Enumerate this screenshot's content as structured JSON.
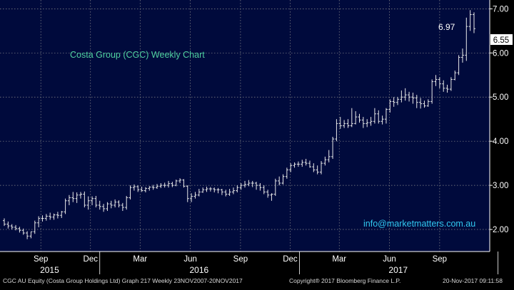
{
  "chart_data": {
    "type": "ohlc",
    "title": "Costa Group (CGC) Weekly Chart",
    "watermark": "info@marketmatters.com.au",
    "colors": {
      "background": "#000000",
      "plot_background": "#000a3c",
      "bars": "#e8e8e8",
      "title_text": "#4fd0a0",
      "watermark_text": "#31c8f0",
      "grid": "#8a8a8a",
      "axis_text": "#ffffff"
    },
    "y_axis": {
      "side": "right",
      "ylim": [
        1.5,
        7.2
      ],
      "ticks": [
        "2.00",
        "3.00",
        "4.00",
        "5.00",
        "6.00",
        "7.00"
      ]
    },
    "x_axis": {
      "month_ticks": [
        "Sep",
        "Dec",
        "Mar",
        "Jun",
        "Sep",
        "Dec",
        "Mar",
        "Jun",
        "Sep"
      ],
      "year_labels": [
        "2015",
        "2016",
        "2017"
      ]
    },
    "grid": true,
    "annotations": {
      "high_label": "6.97",
      "last_price": "6.55"
    },
    "series": [
      {
        "x": [
          "2015-07-10",
          "2015-07-17",
          "2015-07-24",
          "2015-07-31",
          "2015-08-07",
          "2015-08-14",
          "2015-08-21",
          "2015-08-28",
          "2015-09-04",
          "2015-09-11",
          "2015-09-18",
          "2015-09-25",
          "2015-10-02",
          "2015-10-09",
          "2015-10-16",
          "2015-10-23",
          "2015-10-30",
          "2015-11-06",
          "2015-11-13",
          "2015-11-20",
          "2015-11-27",
          "2015-12-04",
          "2015-12-11",
          "2015-12-18",
          "2015-12-25",
          "2016-01-01",
          "2016-01-08",
          "2016-01-15",
          "2016-01-22",
          "2016-01-29",
          "2016-02-05",
          "2016-02-12",
          "2016-02-19",
          "2016-02-26",
          "2016-03-04",
          "2016-03-11",
          "2016-03-18",
          "2016-03-25",
          "2016-04-01",
          "2016-04-08",
          "2016-04-15",
          "2016-04-22",
          "2016-04-29",
          "2016-05-06",
          "2016-05-13",
          "2016-05-20",
          "2016-05-27",
          "2016-06-03",
          "2016-06-10",
          "2016-06-17",
          "2016-06-24",
          "2016-07-01",
          "2016-07-08",
          "2016-07-15",
          "2016-07-22",
          "2016-07-29",
          "2016-08-05",
          "2016-08-12",
          "2016-08-19",
          "2016-08-26",
          "2016-09-02",
          "2016-09-09",
          "2016-09-16",
          "2016-09-23",
          "2016-09-30",
          "2016-10-07",
          "2016-10-14",
          "2016-10-21",
          "2016-10-28",
          "2016-11-04",
          "2016-11-11",
          "2016-11-18",
          "2016-11-25",
          "2016-12-02",
          "2016-12-09",
          "2016-12-16",
          "2016-12-23",
          "2016-12-30",
          "2017-01-06",
          "2017-01-13",
          "2017-01-20",
          "2017-01-27",
          "2017-02-03",
          "2017-02-10",
          "2017-02-17",
          "2017-02-24",
          "2017-03-03",
          "2017-03-10",
          "2017-03-17",
          "2017-03-24",
          "2017-03-31",
          "2017-04-07",
          "2017-04-14",
          "2017-04-21",
          "2017-04-28",
          "2017-05-05",
          "2017-05-12",
          "2017-05-19",
          "2017-05-26",
          "2017-06-02",
          "2017-06-09",
          "2017-06-16",
          "2017-06-23",
          "2017-06-30",
          "2017-07-07",
          "2017-07-14",
          "2017-07-21",
          "2017-07-28",
          "2017-08-04",
          "2017-08-11",
          "2017-08-18",
          "2017-08-25",
          "2017-09-01",
          "2017-09-08",
          "2017-09-15",
          "2017-09-22",
          "2017-09-29",
          "2017-10-06",
          "2017-10-13",
          "2017-10-20",
          "2017-10-27",
          "2017-11-03",
          "2017-11-10",
          "2017-11-17"
        ],
        "open": [
          2.2,
          2.12,
          2.08,
          2.05,
          2.02,
          1.98,
          1.92,
          1.85,
          1.95,
          2.15,
          2.25,
          2.25,
          2.3,
          2.28,
          2.33,
          2.32,
          2.4,
          2.65,
          2.72,
          2.7,
          2.78,
          2.8,
          2.55,
          2.65,
          2.7,
          2.55,
          2.52,
          2.47,
          2.58,
          2.55,
          2.62,
          2.55,
          2.5,
          2.72,
          2.95,
          2.97,
          2.9,
          2.88,
          2.93,
          2.96,
          2.95,
          2.98,
          3.0,
          3.0,
          3.04,
          3.0,
          3.1,
          3.12,
          2.98,
          2.7,
          2.75,
          2.78,
          2.85,
          2.9,
          2.92,
          2.92,
          2.9,
          2.9,
          2.85,
          2.8,
          2.85,
          2.88,
          2.95,
          3.0,
          3.02,
          3.05,
          3.05,
          3.0,
          2.95,
          2.85,
          2.78,
          2.8,
          3.1,
          3.05,
          3.2,
          3.35,
          3.45,
          3.48,
          3.48,
          3.52,
          3.5,
          3.42,
          3.35,
          3.3,
          3.5,
          3.58,
          3.65,
          4.05,
          4.4,
          4.35,
          4.4,
          4.35,
          4.4,
          4.55,
          4.48,
          4.4,
          4.42,
          4.45,
          4.62,
          4.45,
          4.5,
          4.72,
          4.9,
          4.88,
          4.95,
          5.0,
          5.05,
          5.0,
          4.98,
          4.88,
          4.85,
          4.8,
          4.9,
          5.35,
          5.4,
          5.3,
          5.2,
          5.18,
          5.4,
          5.55,
          5.9,
          5.95,
          6.6,
          6.87
        ],
        "high": [
          2.25,
          2.18,
          2.12,
          2.1,
          2.06,
          2.02,
          1.96,
          1.95,
          2.2,
          2.3,
          2.32,
          2.35,
          2.38,
          2.36,
          2.4,
          2.42,
          2.7,
          2.78,
          2.85,
          2.84,
          2.85,
          2.86,
          2.75,
          2.75,
          2.76,
          2.65,
          2.58,
          2.62,
          2.65,
          2.68,
          2.66,
          2.6,
          2.76,
          3.0,
          3.02,
          3.0,
          2.97,
          2.96,
          2.98,
          3.01,
          3.03,
          3.05,
          3.06,
          3.1,
          3.08,
          3.13,
          3.16,
          3.14,
          3.0,
          2.82,
          2.85,
          2.92,
          2.95,
          2.97,
          2.96,
          2.95,
          2.94,
          2.92,
          2.9,
          2.92,
          2.95,
          3.0,
          3.05,
          3.1,
          3.12,
          3.1,
          3.08,
          3.05,
          3.0,
          2.9,
          2.82,
          3.15,
          3.2,
          3.25,
          3.4,
          3.5,
          3.52,
          3.54,
          3.58,
          3.6,
          3.56,
          3.5,
          3.45,
          3.55,
          3.65,
          3.8,
          4.1,
          4.5,
          4.55,
          4.48,
          4.5,
          4.75,
          4.68,
          4.62,
          4.55,
          4.5,
          4.55,
          4.75,
          4.7,
          4.58,
          4.75,
          4.95,
          5.0,
          5.0,
          5.15,
          5.2,
          5.12,
          5.1,
          5.05,
          4.98,
          4.92,
          4.95,
          5.4,
          5.5,
          5.45,
          5.38,
          5.28,
          5.45,
          5.6,
          5.95,
          6.1,
          6.8,
          6.97,
          6.92
        ],
        "low": [
          2.08,
          2.02,
          2.0,
          1.98,
          1.93,
          1.88,
          1.78,
          1.8,
          1.9,
          2.05,
          2.18,
          2.2,
          2.22,
          2.22,
          2.25,
          2.26,
          2.35,
          2.55,
          2.62,
          2.6,
          2.7,
          2.5,
          2.45,
          2.55,
          2.5,
          2.45,
          2.4,
          2.42,
          2.48,
          2.5,
          2.5,
          2.42,
          2.45,
          2.68,
          2.88,
          2.85,
          2.85,
          2.84,
          2.88,
          2.9,
          2.92,
          2.94,
          2.95,
          2.95,
          2.96,
          2.98,
          3.05,
          2.95,
          2.62,
          2.62,
          2.7,
          2.75,
          2.83,
          2.85,
          2.86,
          2.84,
          2.82,
          2.78,
          2.75,
          2.76,
          2.8,
          2.84,
          2.9,
          2.95,
          2.98,
          2.96,
          2.9,
          2.88,
          2.8,
          2.72,
          2.65,
          2.76,
          3.0,
          3.02,
          3.15,
          3.3,
          3.4,
          3.42,
          3.42,
          3.45,
          3.4,
          3.3,
          3.25,
          3.25,
          3.45,
          3.52,
          3.6,
          4.0,
          4.28,
          4.3,
          4.3,
          4.32,
          4.38,
          4.42,
          4.3,
          4.32,
          4.35,
          4.4,
          4.4,
          4.38,
          4.4,
          4.65,
          4.78,
          4.82,
          4.88,
          4.92,
          4.9,
          4.85,
          4.75,
          4.74,
          4.76,
          4.78,
          4.85,
          5.25,
          5.2,
          5.12,
          5.1,
          5.14,
          5.38,
          5.5,
          5.78,
          5.82,
          6.5,
          6.45
        ],
        "close": [
          2.12,
          2.08,
          2.05,
          2.02,
          1.98,
          1.92,
          1.85,
          1.95,
          2.15,
          2.25,
          2.25,
          2.3,
          2.28,
          2.33,
          2.32,
          2.4,
          2.65,
          2.72,
          2.7,
          2.78,
          2.8,
          2.55,
          2.65,
          2.7,
          2.55,
          2.52,
          2.47,
          2.58,
          2.55,
          2.62,
          2.55,
          2.5,
          2.72,
          2.95,
          2.97,
          2.9,
          2.88,
          2.93,
          2.96,
          2.95,
          2.98,
          3.0,
          3.0,
          3.04,
          3.0,
          3.1,
          3.12,
          2.98,
          2.7,
          2.75,
          2.78,
          2.85,
          2.9,
          2.92,
          2.92,
          2.9,
          2.9,
          2.85,
          2.8,
          2.85,
          2.88,
          2.95,
          3.0,
          3.02,
          3.05,
          3.05,
          3.0,
          2.95,
          2.85,
          2.78,
          2.8,
          3.1,
          3.05,
          3.2,
          3.35,
          3.45,
          3.48,
          3.48,
          3.52,
          3.5,
          3.42,
          3.35,
          3.3,
          3.5,
          3.58,
          3.65,
          4.05,
          4.4,
          4.35,
          4.4,
          4.35,
          4.4,
          4.55,
          4.48,
          4.4,
          4.42,
          4.45,
          4.62,
          4.45,
          4.5,
          4.72,
          4.9,
          4.88,
          4.95,
          5.0,
          5.05,
          5.0,
          4.98,
          4.88,
          4.85,
          4.8,
          4.9,
          5.35,
          5.4,
          5.3,
          5.2,
          5.18,
          5.4,
          5.55,
          5.9,
          5.95,
          6.6,
          6.87,
          6.55
        ]
      }
    ]
  },
  "footer": {
    "left": "CGC AU Equity (Costa Group Holdings Ltd) Graph 217  Weekly 23NOV2007-20NOV2017",
    "center": "Copyright® 2017 Bloomberg Finance L.P.",
    "right": "20-Nov-2017 09:11:58"
  }
}
